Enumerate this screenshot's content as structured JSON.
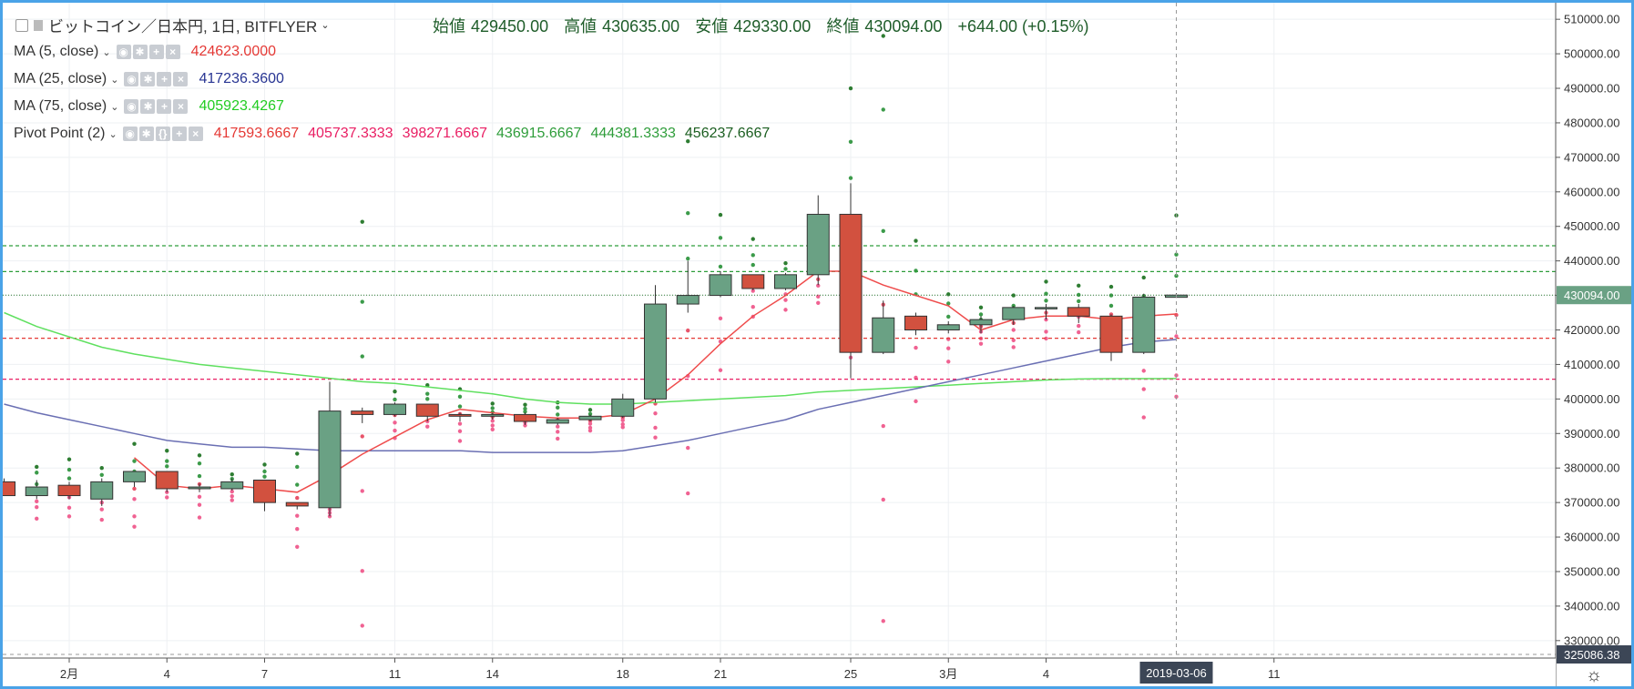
{
  "header": {
    "symbol_label": "ビットコイン／日本円, 1日, BITFLYER",
    "ohlc": {
      "open_label": "始値",
      "open": "429450.00",
      "high_label": "高値",
      "high": "430635.00",
      "low_label": "安値",
      "low": "429330.00",
      "close_label": "終値",
      "close": "430094.00",
      "change": "+644.00 (+0.15%)"
    }
  },
  "indicators": [
    {
      "name": "MA (5, close)",
      "values": [
        "424623.0000"
      ],
      "colors": [
        "#e53935"
      ]
    },
    {
      "name": "MA (25, close)",
      "values": [
        "417236.3600"
      ],
      "colors": [
        "#283593"
      ]
    },
    {
      "name": "MA (75, close)",
      "values": [
        "405923.4267"
      ],
      "colors": [
        "#22cc22"
      ]
    },
    {
      "name": "Pivot Point (2)",
      "values": [
        "417593.6667",
        "405737.3333",
        "398271.6667",
        "436915.6667",
        "444381.3333",
        "456237.6667"
      ],
      "colors": [
        "#e53935",
        "#e91e63",
        "#e91e63",
        "#2e9d3a",
        "#2e9d3a",
        "#1b5e20"
      ]
    }
  ],
  "price_axis": {
    "ticks": [
      "510000.00",
      "500000.00",
      "490000.00",
      "480000.00",
      "470000.00",
      "460000.00",
      "450000.00",
      "440000.00",
      "430000.00",
      "420000.00",
      "410000.00",
      "400000.00",
      "390000.00",
      "380000.00",
      "370000.00",
      "360000.00",
      "350000.00",
      "340000.00",
      "330000.00"
    ],
    "current_price_label": "430094.00",
    "bottom_label": "325086.38"
  },
  "date_axis": {
    "labels": [
      {
        "text": "2月",
        "i": 2
      },
      {
        "text": "4",
        "i": 5
      },
      {
        "text": "7",
        "i": 8
      },
      {
        "text": "11",
        "i": 12
      },
      {
        "text": "14",
        "i": 15
      },
      {
        "text": "18",
        "i": 19
      },
      {
        "text": "21",
        "i": 22
      },
      {
        "text": "25",
        "i": 26
      },
      {
        "text": "3月",
        "i": 29
      },
      {
        "text": "4",
        "i": 32
      },
      {
        "text": "11",
        "i": 39
      }
    ],
    "crosshair_date": "2019-03-06"
  },
  "chart_data": {
    "type": "candlestick",
    "x_first": "2019-01-31",
    "ylim": [
      326000,
      514000
    ],
    "candles": [
      {
        "o": 376000,
        "h": 377000,
        "l": 372000,
        "c": 372000
      },
      {
        "o": 372000,
        "h": 376500,
        "l": 371000,
        "c": 374500
      },
      {
        "o": 375000,
        "h": 376000,
        "l": 371000,
        "c": 372000
      },
      {
        "o": 371000,
        "h": 377000,
        "l": 369000,
        "c": 376000
      },
      {
        "o": 376000,
        "h": 379000,
        "l": 374500,
        "c": 379000
      },
      {
        "o": 379000,
        "h": 379000,
        "l": 373000,
        "c": 374000
      },
      {
        "o": 374000,
        "h": 375500,
        "l": 373000,
        "c": 374500
      },
      {
        "o": 374000,
        "h": 377000,
        "l": 373500,
        "c": 376000
      },
      {
        "o": 376500,
        "h": 376500,
        "l": 367500,
        "c": 370000
      },
      {
        "o": 370000,
        "h": 370000,
        "l": 368000,
        "c": 369000
      },
      {
        "o": 368500,
        "h": 405000,
        "l": 366000,
        "c": 396500
      },
      {
        "o": 396500,
        "h": 397500,
        "l": 393000,
        "c": 395500
      },
      {
        "o": 395500,
        "h": 399000,
        "l": 395000,
        "c": 398500
      },
      {
        "o": 398500,
        "h": 398500,
        "l": 393500,
        "c": 395000
      },
      {
        "o": 395500,
        "h": 396000,
        "l": 393500,
        "c": 395000
      },
      {
        "o": 395000,
        "h": 396000,
        "l": 394000,
        "c": 395500
      },
      {
        "o": 395500,
        "h": 396000,
        "l": 392500,
        "c": 393500
      },
      {
        "o": 393000,
        "h": 394500,
        "l": 392500,
        "c": 394000
      },
      {
        "o": 394000,
        "h": 395500,
        "l": 393500,
        "c": 395000
      },
      {
        "o": 395000,
        "h": 401500,
        "l": 394500,
        "c": 400000
      },
      {
        "o": 400000,
        "h": 433000,
        "l": 399000,
        "c": 427500
      },
      {
        "o": 427500,
        "h": 440000,
        "l": 425000,
        "c": 430000
      },
      {
        "o": 430000,
        "h": 437000,
        "l": 429500,
        "c": 436000
      },
      {
        "o": 436000,
        "h": 436000,
        "l": 431500,
        "c": 432000
      },
      {
        "o": 432000,
        "h": 436500,
        "l": 431500,
        "c": 436000
      },
      {
        "o": 436000,
        "h": 459000,
        "l": 433000,
        "c": 453500
      },
      {
        "o": 453500,
        "h": 462500,
        "l": 406000,
        "c": 413500
      },
      {
        "o": 413500,
        "h": 428500,
        "l": 413000,
        "c": 423500
      },
      {
        "o": 424000,
        "h": 425000,
        "l": 418500,
        "c": 420000
      },
      {
        "o": 420000,
        "h": 422500,
        "l": 419000,
        "c": 421500
      },
      {
        "o": 421500,
        "h": 424000,
        "l": 419000,
        "c": 423000
      },
      {
        "o": 423000,
        "h": 427000,
        "l": 421500,
        "c": 426500
      },
      {
        "o": 426500,
        "h": 427500,
        "l": 423000,
        "c": 426500
      },
      {
        "o": 426500,
        "h": 427500,
        "l": 422000,
        "c": 424000
      },
      {
        "o": 424000,
        "h": 424500,
        "l": 411000,
        "c": 413500
      },
      {
        "o": 413500,
        "h": 430500,
        "l": 413000,
        "c": 429500
      },
      {
        "o": 429450,
        "h": 430635,
        "l": 429330,
        "c": 430094
      }
    ],
    "ma5": [
      null,
      null,
      null,
      null,
      383000,
      375000,
      374000,
      375000,
      374000,
      373000,
      378000,
      384000,
      389000,
      394000,
      397000,
      396000,
      395000,
      394500,
      394500,
      395500,
      400000,
      407000,
      416000,
      424000,
      430000,
      437000,
      437000,
      433000,
      430000,
      427000,
      420000,
      423000,
      424000,
      424000,
      423000,
      424000,
      424623
    ],
    "ma25": [
      398500,
      396000,
      394000,
      392000,
      390000,
      388000,
      387000,
      386000,
      386000,
      385500,
      385000,
      385000,
      385000,
      385000,
      385000,
      384500,
      384500,
      384500,
      384500,
      385000,
      386500,
      388000,
      390000,
      392000,
      394000,
      397000,
      399000,
      401000,
      403000,
      405000,
      407000,
      409000,
      411000,
      413000,
      415000,
      416500,
      417236
    ],
    "ma75": [
      425000,
      421000,
      418000,
      415000,
      413000,
      411500,
      410000,
      409000,
      408000,
      407000,
      406000,
      405000,
      404500,
      403500,
      402500,
      401500,
      400000,
      399000,
      398500,
      398500,
      399000,
      399500,
      400000,
      400500,
      401000,
      402000,
      402500,
      403000,
      403500,
      404000,
      404500,
      405000,
      405500,
      405800,
      405900,
      405900,
      405923
    ],
    "pivot_levels": [
      {
        "name": "P",
        "value": 417593.6667,
        "color": "#e53935"
      },
      {
        "name": "S1",
        "value": 405737.3333,
        "color": "#e91e63"
      },
      {
        "name": "R1",
        "value": 436915.6667,
        "color": "#2e9d3a"
      },
      {
        "name": "R2",
        "value": 444381.3333,
        "color": "#2e9d3a"
      }
    ],
    "current_price": 430094
  }
}
